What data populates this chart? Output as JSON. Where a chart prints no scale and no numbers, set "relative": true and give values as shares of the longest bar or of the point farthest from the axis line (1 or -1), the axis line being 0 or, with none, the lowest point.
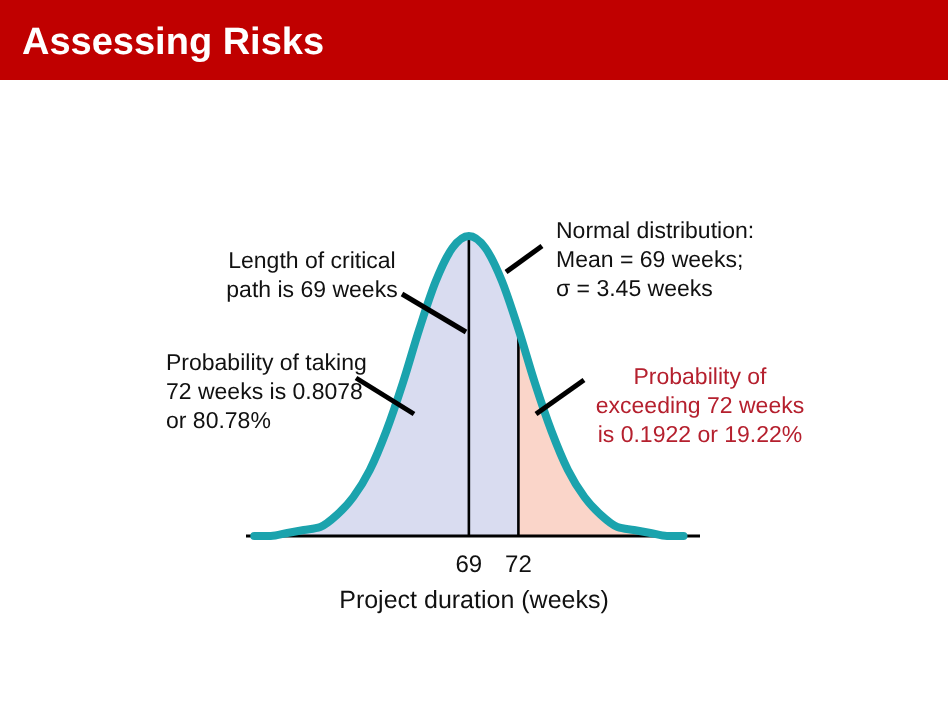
{
  "chart_data": {
    "type": "area",
    "title": "Assessing Risks",
    "xlabel": "Project duration (weeks)",
    "relative": true,
    "xlim": [
      55.5,
      83
    ],
    "xticks": [
      69,
      72
    ],
    "series": [
      {
        "color": "#d9dcf0",
        "x": [
          56,
          57,
          58,
          59,
          60,
          61,
          62,
          63,
          64,
          65,
          66,
          67,
          68,
          69,
          70,
          71,
          72
        ],
        "values": [
          0,
          0,
          0.01,
          0.02,
          0.03,
          0.07,
          0.13,
          0.22,
          0.35,
          0.51,
          0.69,
          0.85,
          0.96,
          1,
          0.96,
          0.85,
          0.69
        ]
      },
      {
        "color": "#fad5c9",
        "x": [
          72,
          73,
          74,
          75,
          76,
          77,
          78,
          79,
          80,
          81,
          82
        ],
        "values": [
          0.69,
          0.51,
          0.35,
          0.22,
          0.13,
          0.07,
          0.03,
          0.02,
          0.01,
          0,
          0
        ]
      },
      {
        "type": "line",
        "color": "#1ba3ad",
        "x": [
          56,
          57,
          58,
          59,
          60,
          61,
          62,
          63,
          64,
          65,
          66,
          67,
          68,
          69,
          70,
          71,
          72,
          73,
          74,
          75,
          76,
          77,
          78,
          79,
          80,
          81,
          82
        ],
        "values": [
          0,
          0,
          0.01,
          0.02,
          0.03,
          0.07,
          0.13,
          0.22,
          0.35,
          0.51,
          0.69,
          0.85,
          0.96,
          1,
          0.96,
          0.85,
          0.69,
          0.51,
          0.35,
          0.22,
          0.13,
          0.07,
          0.03,
          0.02,
          0.01,
          0,
          0
        ]
      }
    ],
    "ref_lines": [
      {
        "axis": "x",
        "value": 69
      },
      {
        "axis": "x",
        "value": 72
      }
    ],
    "annotations": [
      "Normal distribution:\nMean = 69 weeks;\nσ = 3.45 weeks",
      "Length of critical\npath is 69 weeks",
      "Probability of taking\n72 weeks is 0.8078\nor 80.78%",
      "Probability of\nexceeding 72 weeks\nis 0.1922 or 19.22%"
    ]
  }
}
